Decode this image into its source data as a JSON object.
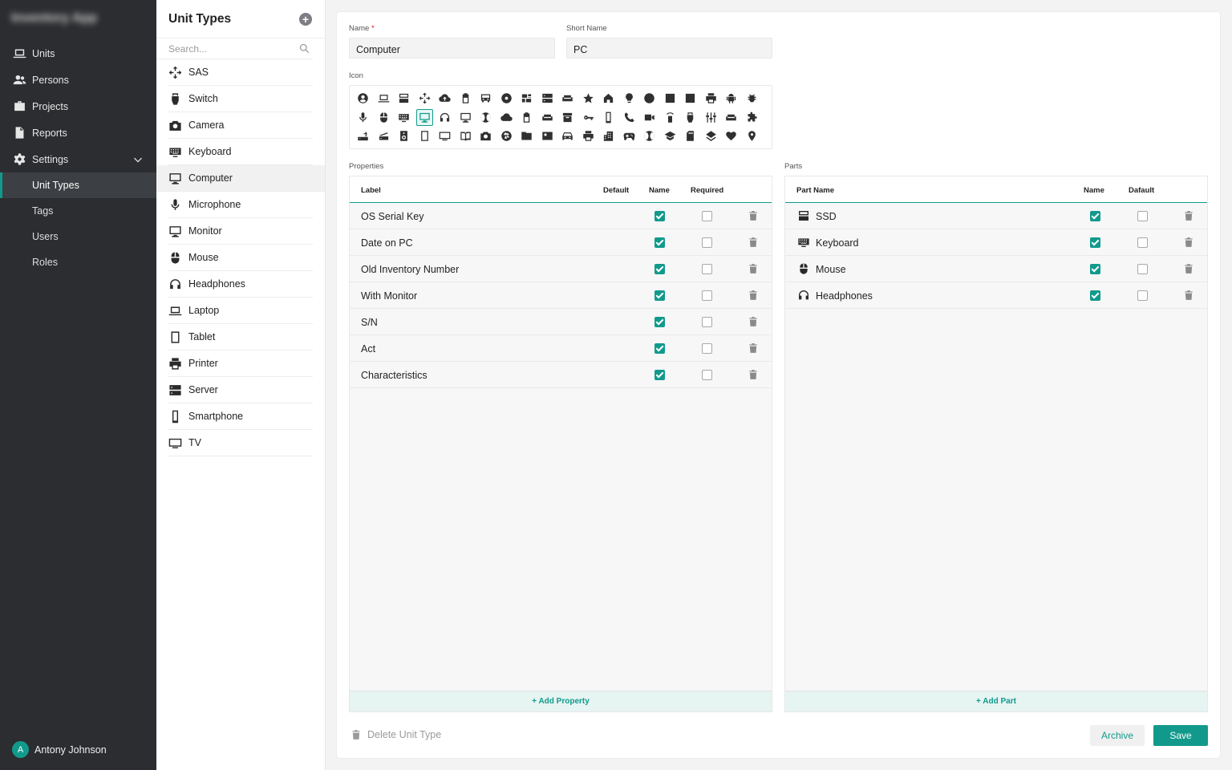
{
  "app": {
    "logo_text": "Inventory App"
  },
  "sidebar": {
    "items": [
      {
        "label": "Units",
        "icon": "laptop-icon"
      },
      {
        "label": "Persons",
        "icon": "people-icon"
      },
      {
        "label": "Projects",
        "icon": "briefcase-icon"
      },
      {
        "label": "Reports",
        "icon": "document-icon"
      },
      {
        "label": "Settings",
        "icon": "gear-icon"
      }
    ],
    "settings_sub": [
      "Unit Types",
      "Tags",
      "Users",
      "Roles"
    ],
    "active_sub": "Unit Types",
    "user": {
      "initial": "A",
      "name": "Antony Johnson"
    }
  },
  "list": {
    "title": "Unit Types",
    "search_placeholder": "Search...",
    "items": [
      {
        "label": "SAS",
        "icon": "move-arrows-icon"
      },
      {
        "label": "Switch",
        "icon": "switch-icon"
      },
      {
        "label": "Camera",
        "icon": "camera-icon"
      },
      {
        "label": "Keyboard",
        "icon": "keyboard-icon"
      },
      {
        "label": "Computer",
        "icon": "monitor-icon"
      },
      {
        "label": "Microphone",
        "icon": "microphone-icon"
      },
      {
        "label": "Monitor",
        "icon": "monitor-icon"
      },
      {
        "label": "Mouse",
        "icon": "mouse-icon"
      },
      {
        "label": "Headphones",
        "icon": "headphones-icon"
      },
      {
        "label": "Laptop",
        "icon": "laptop-icon"
      },
      {
        "label": "Tablet",
        "icon": "tablet-icon"
      },
      {
        "label": "Printer",
        "icon": "printer-icon"
      },
      {
        "label": "Server",
        "icon": "server-icon"
      },
      {
        "label": "Smartphone",
        "icon": "smartphone-icon"
      },
      {
        "label": "TV",
        "icon": "tv-icon"
      }
    ],
    "active": "Computer"
  },
  "form": {
    "name_label": "Name",
    "name_required_mark": "*",
    "name_value": "Computer",
    "short_name_label": "Short Name",
    "short_name_value": "PC",
    "icon_label": "Icon",
    "selected_icon": "monitor-icon"
  },
  "properties": {
    "section_label": "Properties",
    "headers": {
      "label": "Label",
      "default": "Default",
      "name": "Name",
      "required": "Required"
    },
    "rows": [
      {
        "label": "OS Serial Key",
        "name": true,
        "required": false
      },
      {
        "label": "Date on PC",
        "name": true,
        "required": false
      },
      {
        "label": "Old Inventory Number",
        "name": true,
        "required": false
      },
      {
        "label": "With Monitor",
        "name": true,
        "required": false
      },
      {
        "label": "S/N",
        "name": true,
        "required": false
      },
      {
        "label": "Act",
        "name": true,
        "required": false
      },
      {
        "label": "Characteristics",
        "name": true,
        "required": false
      }
    ],
    "add_label": "+ Add Property"
  },
  "parts": {
    "section_label": "Parts",
    "headers": {
      "part_name": "Part Name",
      "name": "Name",
      "default": "Dafault"
    },
    "rows": [
      {
        "label": "SSD",
        "icon": "ssd-icon",
        "name": true,
        "default": false
      },
      {
        "label": "Keyboard",
        "icon": "keyboard-icon",
        "name": true,
        "default": false
      },
      {
        "label": "Mouse",
        "icon": "mouse-icon",
        "name": true,
        "default": false
      },
      {
        "label": "Headphones",
        "icon": "headphones-icon",
        "name": true,
        "default": false
      }
    ],
    "add_label": "+ Add Part"
  },
  "actions": {
    "delete_label": "Delete Unit Type",
    "archive_label": "Archive",
    "save_label": "Save"
  },
  "colors": {
    "accent": "#119a8c",
    "sidebar_bg": "#2b2d30"
  }
}
